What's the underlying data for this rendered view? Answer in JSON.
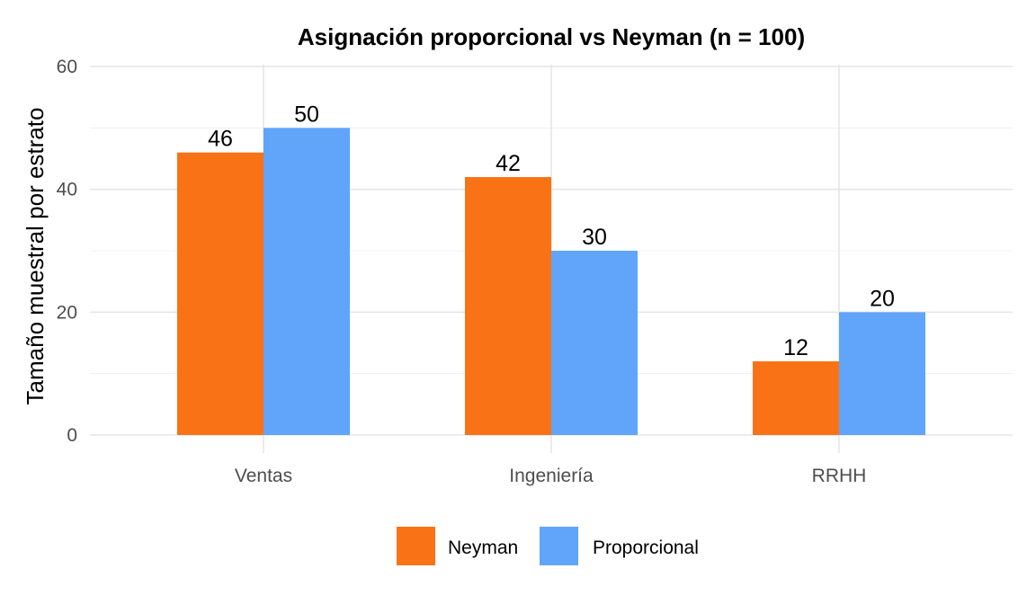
{
  "chart_data": {
    "type": "bar",
    "title": "Asignación proporcional vs Neyman (n = 100)",
    "xlabel": "",
    "ylabel": "Tamaño muestral por estrato",
    "categories": [
      "Ventas",
      "Ingeniería",
      "RRHH"
    ],
    "series": [
      {
        "name": "Neyman",
        "values": [
          46,
          42,
          12
        ],
        "color": "#F97316"
      },
      {
        "name": "Proporcional",
        "values": [
          50,
          30,
          20
        ],
        "color": "#60A5FA"
      }
    ],
    "ylim": [
      0,
      60
    ],
    "yticks": [
      0,
      20,
      40,
      60
    ],
    "grid": true,
    "legend_position": "bottom"
  }
}
